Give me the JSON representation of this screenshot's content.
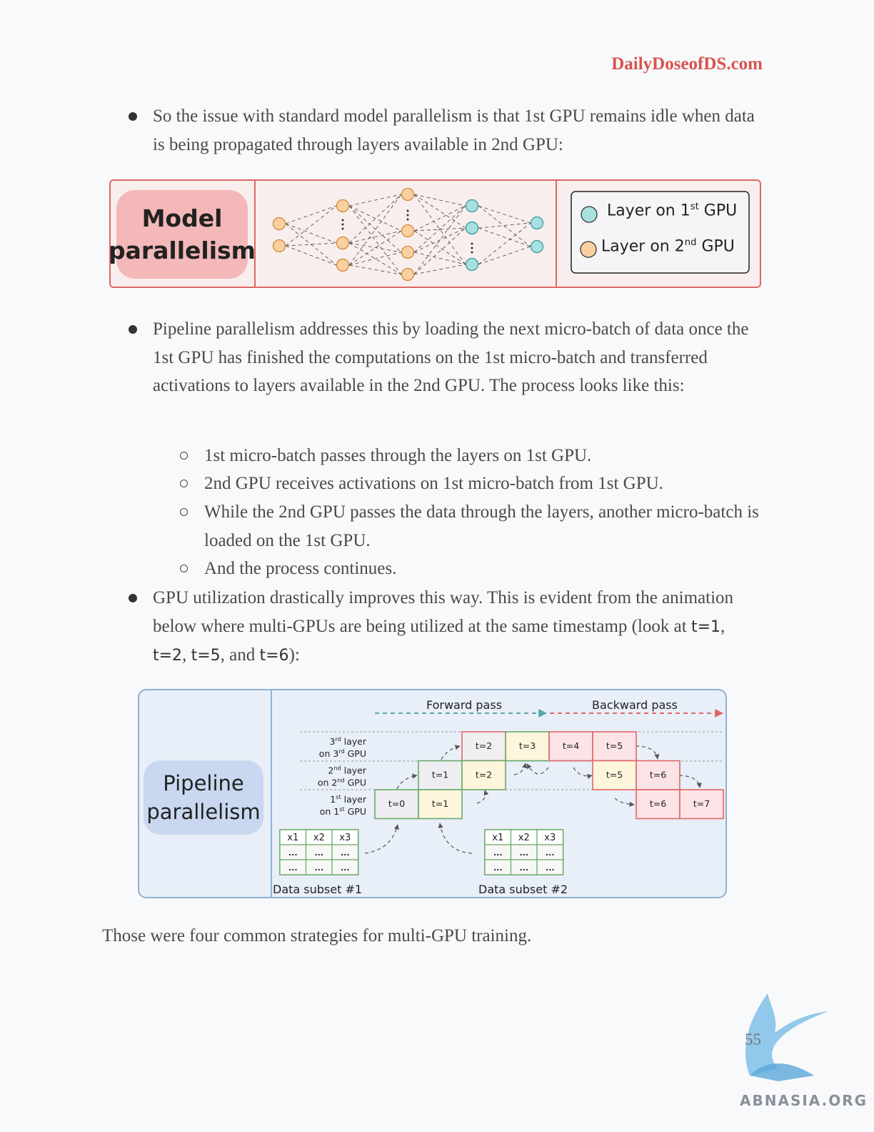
{
  "header": {
    "site": "DailyDoseofDS.com"
  },
  "bullets": [
    {
      "text": "So the issue with standard model parallelism is that 1st GPU remains idle when data is being propagated through layers available in 2nd GPU:"
    },
    {
      "text": "Pipeline parallelism addresses this by loading the next micro-batch of data once the 1st GPU has finished the computations on the 1st micro-batch and transferred activations to layers available in the 2nd GPU. The process looks like this:",
      "subitems": [
        "1st micro-batch passes through the layers on 1st GPU.",
        "2nd GPU receives activations on 1st micro-batch from 1st GPU.",
        "While the 2nd GPU passes the data through the layers, another micro-batch is loaded on the 1st GPU.",
        "And the process continues."
      ]
    },
    {
      "runs": [
        "GPU utilization drastically improves this way. This is evident from the animation below where multi-GPUs are being utilized at the same timestamp (look at ",
        "t=1",
        ", ",
        "t=2",
        ", ",
        "t=5",
        ", and ",
        "t=6",
        "):"
      ]
    }
  ],
  "figure1": {
    "label": "Model parallelism",
    "legend": [
      [
        "Layer on 1",
        "st",
        " GPU"
      ],
      [
        "Layer on 2",
        "nd",
        " GPU"
      ]
    ]
  },
  "figure2": {
    "label": "Pipeline parallelism",
    "forward": "Forward pass",
    "backward": "Backward pass",
    "rows": [
      {
        "line1": [
          "3",
          "rd",
          " layer"
        ],
        "line2": [
          "on 3",
          "rd",
          " GPU"
        ],
        "cells": [
          "t=2",
          "t=3",
          "t=4",
          "t=5"
        ]
      },
      {
        "line1": [
          "2",
          "nd",
          " layer"
        ],
        "line2": [
          "on 2",
          "nd",
          " GPU"
        ],
        "cells": [
          "t=1",
          "t=2",
          "t=5",
          "t=6"
        ]
      },
      {
        "line1": [
          "1",
          "st",
          " layer"
        ],
        "line2": [
          "on 1",
          "st",
          " GPU"
        ],
        "cells": [
          "t=0",
          "t=1",
          "t=6",
          "t=7"
        ]
      }
    ],
    "subsets": [
      {
        "header": [
          "x1",
          "x2",
          "x3"
        ],
        "rows": [
          [
            "...",
            "...",
            "..."
          ],
          [
            "...",
            "...",
            "..."
          ]
        ],
        "caption": "Data subset #1"
      },
      {
        "header": [
          "x1",
          "x2",
          "x3"
        ],
        "rows": [
          [
            "...",
            "...",
            "..."
          ],
          [
            "...",
            "...",
            "..."
          ]
        ],
        "caption": "Data subset #2"
      }
    ]
  },
  "closing": "Those were four common strategies for multi-GPU training.",
  "footer": {
    "page": "55",
    "watermark": "ABNASIA.ORG"
  }
}
